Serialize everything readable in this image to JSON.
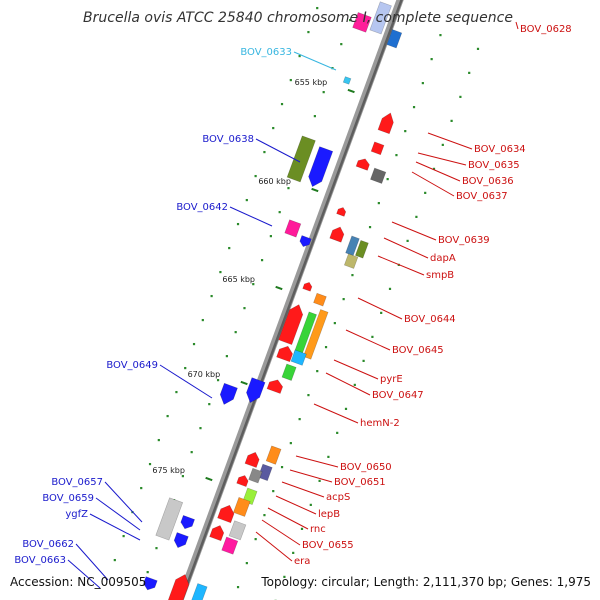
{
  "title": "Brucella ovis ATCC 25840 chromosome I, complete sequence",
  "footer": {
    "accession": "Accession: NC_009505",
    "topology": "Topology: circular; Length: 2,111,370 bp; Genes: 1,975"
  },
  "colors": {
    "forward_labels": "#1a1acc",
    "reverse_labels": "#cc1111",
    "highlight_label": "#38b6e0",
    "backbone": "#8c8c8c",
    "tick_marks": "#1f7a1f"
  },
  "ticks": [
    {
      "kbp": 655,
      "label": "655 kbp"
    },
    {
      "kbp": 660,
      "label": "660 kbp"
    },
    {
      "kbp": 665,
      "label": "665 kbp"
    },
    {
      "kbp": 670,
      "label": "670 kbp"
    },
    {
      "kbp": 675,
      "label": "675 kbp"
    }
  ],
  "left_labels": [
    {
      "text": "BOV_0633",
      "style": "highlight"
    },
    {
      "text": "BOV_0638",
      "style": "forward"
    },
    {
      "text": "BOV_0642",
      "style": "forward"
    },
    {
      "text": "BOV_0649",
      "style": "forward"
    },
    {
      "text": "BOV_0657",
      "style": "forward"
    },
    {
      "text": "BOV_0659",
      "style": "forward"
    },
    {
      "text": "ygfZ",
      "style": "forward"
    },
    {
      "text": "BOV_0662",
      "style": "forward"
    },
    {
      "text": "BOV_0663",
      "style": "forward"
    }
  ],
  "right_labels": [
    {
      "text": "BOV_0628"
    },
    {
      "text": "BOV_0634"
    },
    {
      "text": "BOV_0635"
    },
    {
      "text": "BOV_0636"
    },
    {
      "text": "BOV_0637"
    },
    {
      "text": "BOV_0639"
    },
    {
      "text": "dapA"
    },
    {
      "text": "smpB"
    },
    {
      "text": "BOV_0644"
    },
    {
      "text": "BOV_0645"
    },
    {
      "text": "pyrE"
    },
    {
      "text": "BOV_0647"
    },
    {
      "text": "hemN-2"
    },
    {
      "text": "BOV_0650"
    },
    {
      "text": "BOV_0651"
    },
    {
      "text": "acpS"
    },
    {
      "text": "lepB"
    },
    {
      "text": "rnc"
    },
    {
      "text": "BOV_0655"
    },
    {
      "text": "era"
    }
  ]
}
